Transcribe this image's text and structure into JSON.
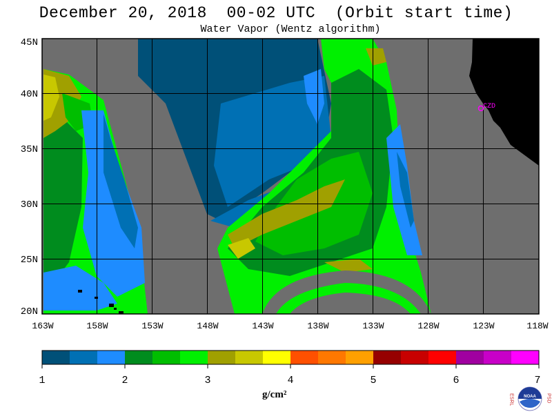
{
  "title": "December 20, 2018  00-02 UTC  (Orbit start time)",
  "subtitle": "Water Vapor (Wentz algorithm)",
  "map": {
    "lat_labels": [
      "45N",
      "40N",
      "35N",
      "30N",
      "25N",
      "20N"
    ],
    "lon_labels": [
      "163W",
      "158W",
      "153W",
      "148W",
      "143W",
      "138W",
      "133W",
      "128W",
      "123W",
      "118W"
    ],
    "station_label": "CZD",
    "colors": {
      "no_data": "#6e6e6e",
      "land": "#000000",
      "grid": "#000000",
      "station": "#ff00ff"
    }
  },
  "colorbar": {
    "tick_labels": [
      "1",
      "2",
      "3",
      "4",
      "5",
      "6",
      "7"
    ],
    "unit": "g/cm²",
    "colors": [
      "#005078",
      "#0070b4",
      "#1e8cff",
      "#008c1e",
      "#00be00",
      "#00f000",
      "#a0a000",
      "#c8c800",
      "#ffff00",
      "#ff5000",
      "#ff7800",
      "#ffa000",
      "#960000",
      "#c80000",
      "#ff0000",
      "#a000a0",
      "#c800c8",
      "#ff00ff"
    ]
  },
  "logo": {
    "left_text": "ESRL",
    "right_text": "PSD",
    "center_text": "NOAA"
  }
}
